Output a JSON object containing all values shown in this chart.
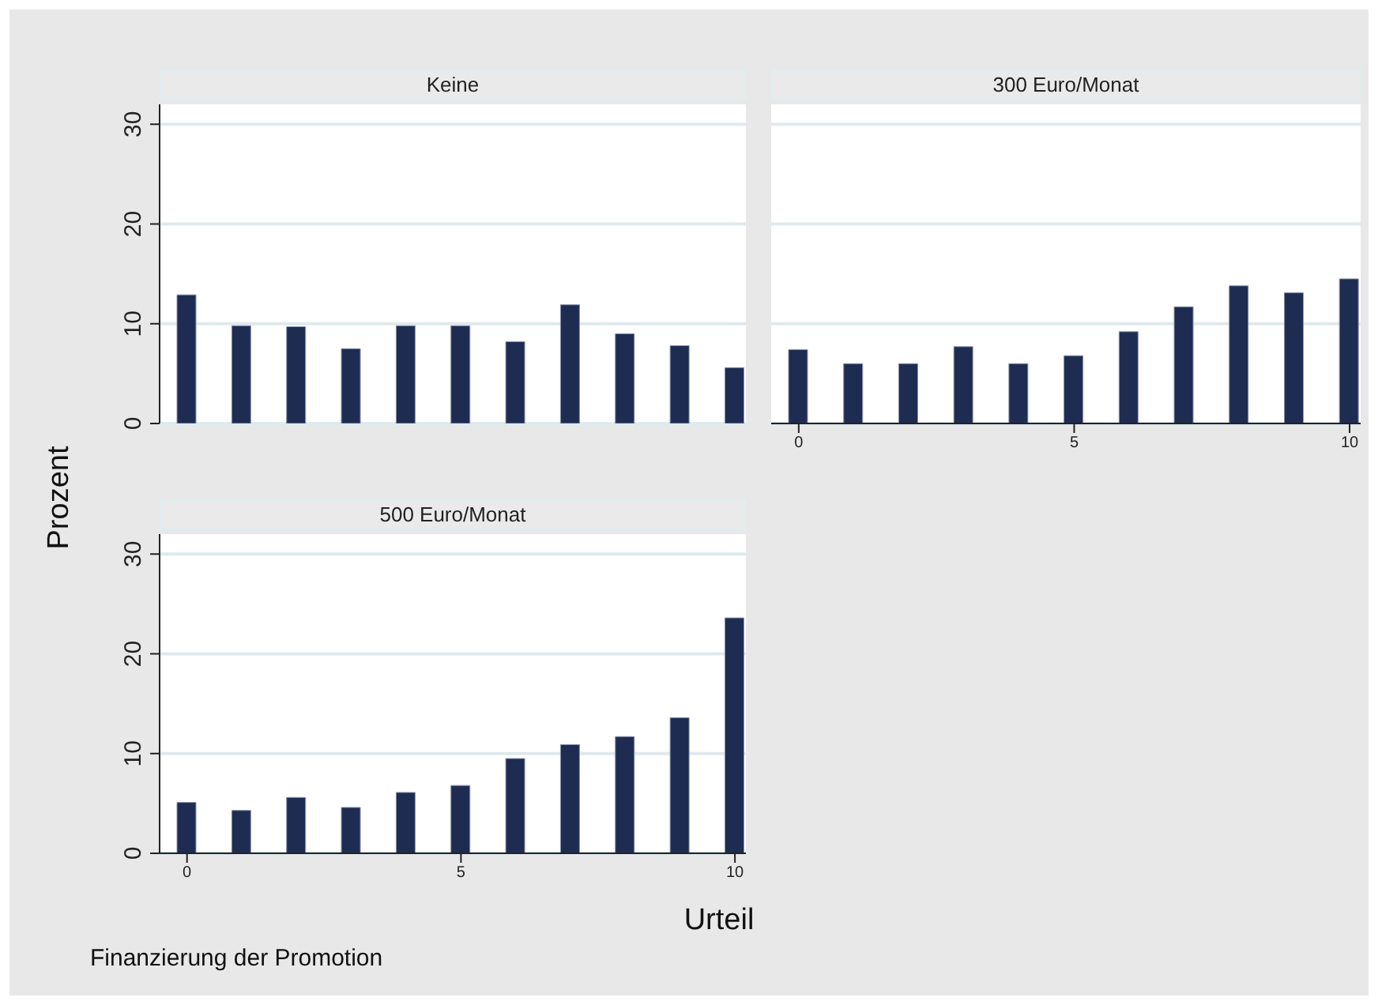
{
  "chart_data": [
    {
      "type": "bar",
      "title": "Keine",
      "ylabel": "Prozent",
      "x": [
        0,
        1,
        2,
        3,
        4,
        5,
        6,
        7,
        8,
        9,
        10
      ],
      "values": [
        12.9,
        9.8,
        9.7,
        7.5,
        9.8,
        9.8,
        8.2,
        11.9,
        9.0,
        7.8,
        5.6
      ],
      "color": "#1f2c52",
      "xlim": [
        -0.5,
        10.2
      ],
      "ylim": [
        0,
        32
      ],
      "yticks": [
        0,
        10,
        20,
        30
      ],
      "grid": "y",
      "tick_labels": "y"
    },
    {
      "type": "bar",
      "title": "300 Euro/Monat",
      "x": [
        0,
        1,
        2,
        3,
        4,
        5,
        6,
        7,
        8,
        9,
        10
      ],
      "values": [
        7.4,
        6.0,
        6.0,
        7.7,
        6.0,
        6.8,
        9.2,
        11.7,
        13.8,
        13.1,
        14.5
      ],
      "color": "#1f2c52",
      "xlim": [
        -0.5,
        10.2
      ],
      "xticks": [
        0,
        5,
        10
      ],
      "ylim": [
        0,
        32
      ],
      "yticks": [
        0,
        10,
        20,
        30
      ],
      "grid": "y",
      "tick_labels": "x"
    },
    {
      "type": "bar",
      "title": "500 Euro/Monat",
      "xlabel": "Urteil",
      "annotations": [
        "Finanzierung der Promotion"
      ],
      "x": [
        0,
        1,
        2,
        3,
        4,
        5,
        6,
        7,
        8,
        9,
        10
      ],
      "values": [
        5.1,
        4.3,
        5.6,
        4.6,
        6.1,
        6.8,
        9.5,
        10.9,
        11.7,
        13.6,
        23.6
      ],
      "color": "#1f2c52",
      "xlim": [
        -0.5,
        10.2
      ],
      "xticks": [
        0,
        5,
        10
      ],
      "ylim": [
        0,
        32
      ],
      "yticks": [
        0,
        10,
        20,
        30
      ],
      "grid": "y"
    }
  ]
}
